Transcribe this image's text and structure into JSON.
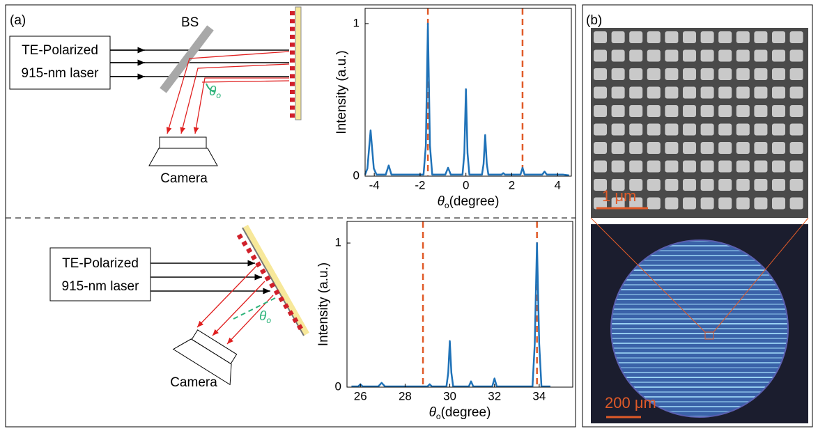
{
  "panel_a": {
    "label": "(a)",
    "top_setup": {
      "splitter": "BS",
      "laser": [
        "TE-Polarized",
        "915-nm laser"
      ],
      "camera": "Camera",
      "angle": {
        "symbol": "θ",
        "subscript": "o"
      }
    },
    "bottom_setup": {
      "laser": [
        "TE-Polarized",
        "915-nm laser"
      ],
      "camera": "Camera",
      "angle": {
        "symbol": "θ",
        "subscript": "o"
      }
    }
  },
  "panel_b": {
    "label": "(b)",
    "sem_scale": "1 μm",
    "image_scale": "200 μm"
  },
  "chart_data": [
    {
      "type": "line",
      "color": "#1f72b8",
      "vline_color": "#e05a28",
      "x": [
        -4.4,
        -4.3,
        -4.16,
        -4.02,
        -3.9,
        -3.5,
        -3.37,
        -3.25,
        -1.85,
        -1.75,
        -1.66,
        -1.57,
        -1.47,
        -0.9,
        -0.78,
        -0.66,
        -0.15,
        -0.07,
        0,
        0.07,
        0.15,
        0.7,
        0.77,
        0.84,
        0.91,
        0.98,
        1.55,
        1.63,
        1.71,
        2.38,
        2.47,
        2.56,
        3.33,
        3.43,
        3.53,
        4.15,
        4.25,
        4.5
      ],
      "values": [
        0.01,
        0.05,
        0.3,
        0.05,
        0.01,
        0.01,
        0.07,
        0.01,
        0.01,
        0.2,
        1.0,
        0.2,
        0.01,
        0.01,
        0.055,
        0.01,
        0.01,
        0.15,
        0.57,
        0.15,
        0.01,
        0.01,
        0.08,
        0.27,
        0.08,
        0.01,
        0.01,
        0.02,
        0.01,
        0.01,
        0.055,
        0.01,
        0.01,
        0.03,
        0.01,
        0.01,
        0.01,
        0.005
      ],
      "vlines": [
        -1.66,
        2.47
      ],
      "xlim": [
        -4.4,
        4.6
      ],
      "ylim": [
        0,
        1.1
      ],
      "xticks": [
        -4,
        -2,
        0,
        2,
        4
      ],
      "yticks": [
        0,
        1
      ],
      "x_label": {
        "symbol": "θ",
        "subscript": "o",
        "text": "(degree)"
      },
      "y_label": "Intensity (a.u.)"
    },
    {
      "type": "line",
      "color": "#1f72b8",
      "vline_color": "#e05a28",
      "x": [
        25.6,
        25.9,
        26.0,
        26.1,
        26.8,
        26.95,
        27.1,
        29.0,
        29.1,
        29.2,
        29.85,
        29.93,
        30.0,
        30.07,
        30.15,
        30.85,
        30.95,
        31.05,
        31.9,
        32.0,
        32.1,
        33.7,
        33.8,
        33.9,
        34.0,
        34.1,
        34.5
      ],
      "values": [
        0.005,
        0.005,
        0.02,
        0.005,
        0.005,
        0.03,
        0.005,
        0.005,
        0.02,
        0.005,
        0.005,
        0.1,
        0.32,
        0.1,
        0.005,
        0.005,
        0.04,
        0.005,
        0.005,
        0.06,
        0.005,
        0.005,
        0.3,
        1.0,
        0.3,
        0.005,
        0.005
      ],
      "vlines": [
        28.8,
        33.9
      ],
      "xlim": [
        25.4,
        35.5
      ],
      "ylim": [
        0,
        1.15
      ],
      "xticks": [
        26,
        28,
        30,
        32,
        34
      ],
      "yticks": [
        0,
        1
      ],
      "x_label": {
        "symbol": "θ",
        "subscript": "o",
        "text": "(degree)"
      },
      "y_label": "Intensity (a.u.)"
    }
  ]
}
